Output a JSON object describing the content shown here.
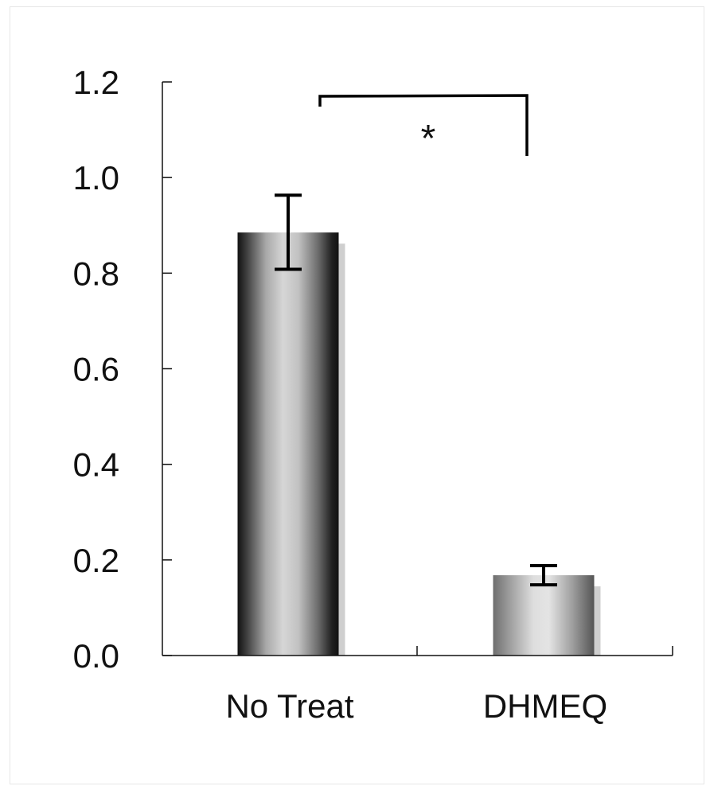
{
  "chart_data": {
    "type": "bar",
    "categories": [
      "No Treat",
      "DHMEQ"
    ],
    "values": [
      0.885,
      0.168
    ],
    "error": [
      {
        "low": 0.808,
        "high": 0.963
      },
      {
        "low": 0.148,
        "high": 0.188
      }
    ],
    "yticks": [
      "0.0",
      "0.2",
      "0.4",
      "0.6",
      "0.8",
      "1.0",
      "1.2"
    ],
    "ylim": [
      0,
      1.2
    ],
    "significance": {
      "between": [
        "No Treat",
        "DHMEQ"
      ],
      "label": "*"
    },
    "grid": false,
    "legend": "none"
  }
}
